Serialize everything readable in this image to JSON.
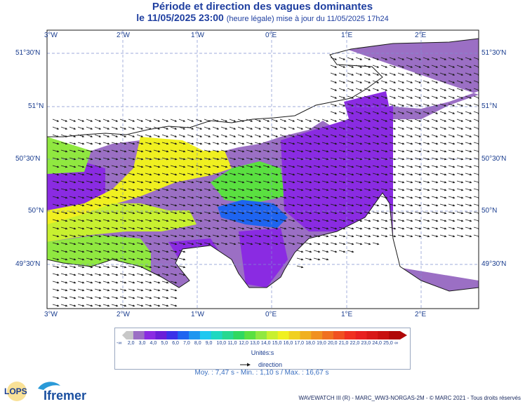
{
  "title": "Période et direction des vagues dominantes",
  "subtitle_date": "le 11/05/2025 23:00",
  "subtitle_note": "(heure légale) mise à jour du 11/05/2025 17h24",
  "lon_labels": [
    "3°W",
    "2°W",
    "1°W",
    "0°E",
    "1°E",
    "2°E"
  ],
  "lat_labels": [
    "51°30'N",
    "51°N",
    "50°30'N",
    "50°N",
    "49°30'N"
  ],
  "legend": {
    "ticks": [
      "-∞",
      "2,0",
      "3,0",
      "4,0",
      "5,0",
      "6,0",
      "7,0",
      "8,0",
      "9,0",
      "10,0",
      "11,0",
      "12,0",
      "13,0",
      "14,0",
      "15,0",
      "16,0",
      "17,0",
      "18,0",
      "19,0",
      "20,0",
      "21,0",
      "22,0",
      "23,0",
      "24,0",
      "25,0",
      "∞"
    ],
    "colors": [
      "#c8c8c8",
      "#9b6fc4",
      "#8a2be2",
      "#6a1fd8",
      "#3a32e8",
      "#1e64f0",
      "#1e96f0",
      "#1ec8f0",
      "#20d8c0",
      "#28d890",
      "#30d860",
      "#5ae040",
      "#90e840",
      "#c8f030",
      "#f0f020",
      "#f0d020",
      "#f0b020",
      "#f09020",
      "#f07020",
      "#f05020",
      "#f03020",
      "#e82020",
      "#d81818",
      "#c81010",
      "#b00808"
    ],
    "units": "Unités:s",
    "direction_label": "direction"
  },
  "stats": "Moy. : 7,47 s   -   Min. : 1,10 s / Max. : 16,67 s",
  "footer": "WAVEWATCH III (R) - MARC_WW3-NORGAS-2M - © MARC 2021 - Tous droits réservés",
  "logos": {
    "lops": "LOPS",
    "ifremer": "Ifremer"
  }
}
